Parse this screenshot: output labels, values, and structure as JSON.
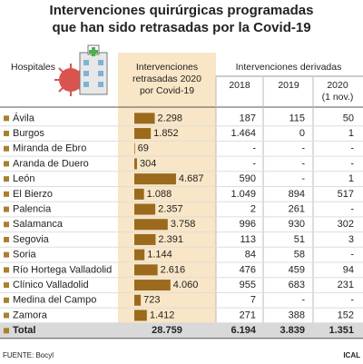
{
  "title": [
    "Intervenciones quirúrgicas programadas",
    "que han sido retrasadas por la Covid-19"
  ],
  "table": {
    "headers": {
      "hospitals": "Hospitales",
      "delayed": [
        "Intervenciones",
        "retrasadas 2020",
        "por Covid-19"
      ],
      "derived": "Intervenciones derivadas",
      "years": [
        [
          "2018"
        ],
        [
          "2019"
        ],
        [
          "2020",
          "(1 nov.)"
        ]
      ]
    },
    "rows": [
      {
        "name": "Ávila",
        "delayed": {
          "value": 2298,
          "label": "2.298"
        },
        "derived": [
          "187",
          "115",
          "50"
        ]
      },
      {
        "name": "Burgos",
        "delayed": {
          "value": 1852,
          "label": "1.852"
        },
        "derived": [
          "1.464",
          "0",
          "1"
        ]
      },
      {
        "name": "Miranda de Ebro",
        "delayed": {
          "value": 69,
          "label": "69"
        },
        "derived": [
          "-",
          "-",
          "-"
        ]
      },
      {
        "name": "Aranda de Duero",
        "delayed": {
          "value": 304,
          "label": "304"
        },
        "derived": [
          "-",
          "-",
          "-"
        ]
      },
      {
        "name": "León",
        "delayed": {
          "value": 4687,
          "label": "4.687"
        },
        "derived": [
          "590",
          "-",
          "1"
        ]
      },
      {
        "name": "El Bierzo",
        "delayed": {
          "value": 1088,
          "label": "1.088"
        },
        "derived": [
          "1.049",
          "894",
          "517"
        ]
      },
      {
        "name": "Palencia",
        "delayed": {
          "value": 2357,
          "label": "2.357"
        },
        "derived": [
          "2",
          "261",
          "-"
        ]
      },
      {
        "name": "Salamanca",
        "delayed": {
          "value": 3758,
          "label": "3.758"
        },
        "derived": [
          "996",
          "930",
          "302"
        ]
      },
      {
        "name": "Segovia",
        "delayed": {
          "value": 2391,
          "label": "2.391"
        },
        "derived": [
          "113",
          "51",
          "3"
        ]
      },
      {
        "name": "Soria",
        "delayed": {
          "value": 1144,
          "label": "1.144"
        },
        "derived": [
          "84",
          "58",
          "-"
        ]
      },
      {
        "name": "Río Hortega Valladolid",
        "delayed": {
          "value": 2616,
          "label": "2.616"
        },
        "derived": [
          "476",
          "459",
          "94"
        ]
      },
      {
        "name": "Clínico Valladolid",
        "delayed": {
          "value": 4060,
          "label": "4.060"
        },
        "derived": [
          "955",
          "683",
          "231"
        ]
      },
      {
        "name": "Medina del Campo",
        "delayed": {
          "value": 723,
          "label": "723"
        },
        "derived": [
          "7",
          "-",
          "-"
        ]
      },
      {
        "name": "Zamora",
        "delayed": {
          "value": 1412,
          "label": "1.412"
        },
        "derived": [
          "271",
          "388",
          "152"
        ]
      }
    ],
    "total": {
      "name": "Total",
      "delayed": "28.759",
      "derived": [
        "6.194",
        "3.839",
        "1.351"
      ]
    }
  },
  "source": "FUENTE: Bocyl",
  "credit": "ICAL"
}
